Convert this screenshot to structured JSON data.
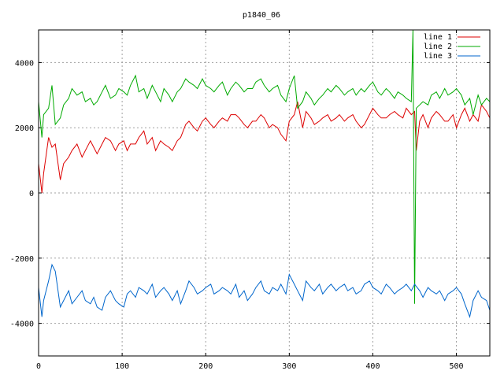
{
  "chart_data": {
    "type": "line",
    "title": "p1840_06",
    "xlabel": "",
    "ylabel": "",
    "xlim": [
      0,
      540
    ],
    "ylim": [
      -5000,
      5000
    ],
    "xticks": [
      0,
      100,
      200,
      300,
      400,
      500
    ],
    "yticks": [
      -4000,
      -2000,
      0,
      2000,
      4000
    ],
    "grid": true,
    "legend_position": "top-right",
    "series": [
      {
        "name": "line 1",
        "color": "#dd0000",
        "x": [
          0,
          4,
          6,
          12,
          16,
          20,
          26,
          30,
          36,
          40,
          46,
          52,
          56,
          62,
          66,
          70,
          76,
          80,
          86,
          92,
          96,
          102,
          106,
          110,
          116,
          120,
          126,
          130,
          136,
          140,
          146,
          150,
          156,
          160,
          166,
          170,
          176,
          180,
          186,
          190,
          196,
          200,
          206,
          210,
          216,
          220,
          226,
          230,
          236,
          240,
          246,
          250,
          256,
          260,
          266,
          270,
          276,
          280,
          286,
          290,
          296,
          300,
          306,
          310,
          316,
          320,
          326,
          330,
          336,
          340,
          346,
          350,
          356,
          360,
          366,
          370,
          376,
          380,
          386,
          390,
          396,
          400,
          406,
          410,
          416,
          420,
          426,
          430,
          436,
          440,
          446,
          450,
          452,
          456,
          460,
          466,
          470,
          476,
          480,
          486,
          490,
          496,
          500,
          506,
          510,
          516,
          520,
          526,
          530,
          536,
          540
        ],
        "y": [
          900,
          0,
          600,
          1700,
          1400,
          1500,
          400,
          900,
          1100,
          1300,
          1500,
          1100,
          1300,
          1600,
          1400,
          1200,
          1500,
          1700,
          1600,
          1300,
          1500,
          1600,
          1300,
          1500,
          1500,
          1700,
          1900,
          1500,
          1700,
          1300,
          1600,
          1500,
          1400,
          1300,
          1600,
          1700,
          2100,
          2200,
          2000,
          1900,
          2200,
          2300,
          2100,
          2000,
          2200,
          2300,
          2200,
          2400,
          2400,
          2300,
          2100,
          2000,
          2200,
          2200,
          2400,
          2300,
          2000,
          2100,
          2000,
          1800,
          1600,
          2200,
          2400,
          2800,
          2000,
          2500,
          2300,
          2100,
          2200,
          2300,
          2400,
          2200,
          2300,
          2400,
          2200,
          2300,
          2400,
          2200,
          2000,
          2100,
          2400,
          2600,
          2400,
          2300,
          2300,
          2400,
          2500,
          2400,
          2300,
          2600,
          2400,
          2500,
          1300,
          2200,
          2400,
          2000,
          2300,
          2500,
          2400,
          2200,
          2200,
          2400,
          2000,
          2400,
          2600,
          2200,
          2400,
          2200,
          2700,
          2500,
          2300
        ]
      },
      {
        "name": "line 2",
        "color": "#00aa00",
        "x": [
          0,
          4,
          6,
          12,
          16,
          20,
          26,
          30,
          36,
          40,
          46,
          52,
          56,
          62,
          66,
          70,
          76,
          80,
          86,
          92,
          96,
          102,
          106,
          110,
          116,
          120,
          126,
          130,
          136,
          140,
          146,
          150,
          156,
          160,
          166,
          170,
          176,
          180,
          186,
          190,
          196,
          200,
          206,
          210,
          216,
          220,
          226,
          230,
          236,
          240,
          246,
          250,
          256,
          260,
          266,
          270,
          276,
          280,
          286,
          290,
          296,
          300,
          306,
          310,
          316,
          320,
          326,
          330,
          336,
          340,
          346,
          350,
          356,
          360,
          366,
          370,
          376,
          380,
          386,
          390,
          396,
          400,
          406,
          410,
          416,
          420,
          426,
          430,
          436,
          440,
          446,
          448,
          450,
          452,
          456,
          460,
          466,
          470,
          476,
          480,
          486,
          490,
          496,
          500,
          506,
          510,
          516,
          520,
          526,
          530,
          536,
          540
        ],
        "y": [
          2800,
          1700,
          2400,
          2600,
          3300,
          2100,
          2300,
          2700,
          2900,
          3200,
          3000,
          3100,
          2800,
          2900,
          2700,
          2800,
          3100,
          3300,
          2900,
          3000,
          3200,
          3100,
          3000,
          3300,
          3600,
          3100,
          3200,
          2900,
          3300,
          3100,
          2800,
          3200,
          3000,
          2800,
          3100,
          3200,
          3500,
          3400,
          3300,
          3200,
          3500,
          3300,
          3200,
          3100,
          3300,
          3400,
          3000,
          3200,
          3400,
          3300,
          3100,
          3200,
          3200,
          3400,
          3500,
          3300,
          3100,
          3200,
          3300,
          3000,
          2800,
          3200,
          3600,
          2600,
          2800,
          3100,
          2900,
          2700,
          2900,
          3000,
          3200,
          3100,
          3300,
          3200,
          3000,
          3100,
          3200,
          3000,
          3200,
          3100,
          3300,
          3400,
          3100,
          3000,
          3200,
          3100,
          2900,
          3100,
          3000,
          2900,
          2800,
          5000,
          -3400,
          2600,
          2700,
          2800,
          2700,
          3000,
          3100,
          2900,
          3200,
          3000,
          3100,
          3200,
          3000,
          2700,
          2900,
          2400,
          3000,
          2700,
          2900,
          2800
        ]
      },
      {
        "name": "line 3",
        "color": "#0066cc",
        "x": [
          0,
          4,
          6,
          12,
          16,
          20,
          26,
          30,
          36,
          40,
          46,
          52,
          56,
          62,
          66,
          70,
          76,
          80,
          86,
          92,
          96,
          102,
          106,
          110,
          116,
          120,
          126,
          130,
          136,
          140,
          146,
          150,
          156,
          160,
          166,
          170,
          176,
          180,
          186,
          190,
          196,
          200,
          206,
          210,
          216,
          220,
          226,
          230,
          236,
          240,
          246,
          250,
          256,
          260,
          266,
          270,
          276,
          280,
          286,
          290,
          296,
          300,
          306,
          310,
          316,
          320,
          326,
          330,
          336,
          340,
          346,
          350,
          356,
          360,
          366,
          370,
          376,
          380,
          386,
          390,
          396,
          400,
          406,
          410,
          416,
          420,
          426,
          430,
          436,
          440,
          446,
          450,
          456,
          460,
          466,
          470,
          476,
          480,
          486,
          490,
          496,
          500,
          506,
          510,
          516,
          520,
          526,
          530,
          536,
          540
        ],
        "y": [
          -2900,
          -3800,
          -3300,
          -2700,
          -2200,
          -2400,
          -3500,
          -3300,
          -3000,
          -3400,
          -3200,
          -3000,
          -3300,
          -3400,
          -3200,
          -3500,
          -3600,
          -3200,
          -3000,
          -3300,
          -3400,
          -3500,
          -3100,
          -3000,
          -3200,
          -2900,
          -3000,
          -3100,
          -2800,
          -3200,
          -3000,
          -2900,
          -3100,
          -3300,
          -3000,
          -3400,
          -3000,
          -2700,
          -2900,
          -3100,
          -3000,
          -2900,
          -2800,
          -3100,
          -3000,
          -2900,
          -3000,
          -3100,
          -2800,
          -3200,
          -3000,
          -3300,
          -3100,
          -2900,
          -2700,
          -3000,
          -3100,
          -2900,
          -3000,
          -2800,
          -3100,
          -2500,
          -2800,
          -3000,
          -3300,
          -2700,
          -2900,
          -3000,
          -2800,
          -3100,
          -2900,
          -2800,
          -3000,
          -2900,
          -2800,
          -3000,
          -2900,
          -3100,
          -3000,
          -2800,
          -2700,
          -2900,
          -3000,
          -3100,
          -2800,
          -2900,
          -3100,
          -3000,
          -2900,
          -2800,
          -3000,
          -2800,
          -3000,
          -3200,
          -2900,
          -3000,
          -3100,
          -3000,
          -3300,
          -3100,
          -3000,
          -2900,
          -3100,
          -3400,
          -3800,
          -3300,
          -3000,
          -3200,
          -3300,
          -3600
        ]
      }
    ]
  }
}
